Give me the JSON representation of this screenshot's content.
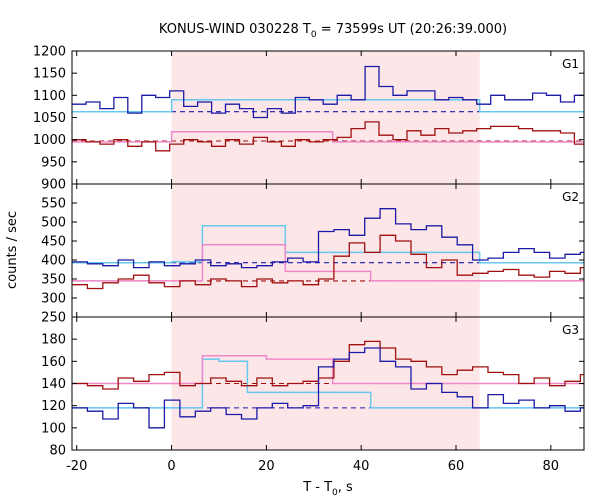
{
  "chart_data": {
    "type": "line",
    "title_main": "KONUS-WIND 030228 T",
    "title_sub": "0",
    "title_rest": " = 73599s UT (20:26:39.000)",
    "xlabel_main": "T - T",
    "xlabel_sub": "0",
    "xlabel_rest": ", s",
    "ylabel": "counts / sec",
    "xlim": [
      -21,
      87
    ],
    "x_ticks": [
      -20,
      0,
      20,
      40,
      60,
      80
    ],
    "highlight": [
      0,
      65
    ],
    "colors": {
      "blue": "#1a1aa6",
      "red": "#a01010",
      "lightblue": "#66c8ee",
      "pink": "#ee88c8",
      "shade": "#fde6e8"
    },
    "panels": [
      {
        "label": "G1",
        "ylim": [
          900,
          1200
        ],
        "y_ticks": [
          900,
          950,
          1000,
          1050,
          1100,
          1150,
          1200
        ],
        "step": 2.944,
        "start": -21,
        "blue_values": [
          1080,
          1085,
          1070,
          1095,
          1060,
          1100,
          1095,
          1110,
          1075,
          1085,
          1060,
          1080,
          1070,
          1050,
          1070,
          1060,
          1095,
          1090,
          1080,
          1100,
          1090,
          1165,
          1120,
          1100,
          1110,
          1110,
          1090,
          1095,
          1090,
          1080,
          1100,
          1090,
          1090,
          1105,
          1100,
          1085,
          1100,
          1070,
          1080,
          1090,
          1075,
          1100,
          1095,
          1090,
          1070,
          1075,
          1060,
          1080,
          1070,
          1060,
          1095,
          1080,
          1100,
          1070,
          1075,
          1060,
          1080,
          1080,
          1060,
          1100,
          1075,
          1060,
          1070,
          1080,
          1065,
          1070,
          1060,
          1055,
          1065,
          1060,
          1080,
          1060,
          1060,
          1055,
          1075,
          1060
        ],
        "red_values": [
          1000,
          995,
          990,
          1000,
          985,
          995,
          975,
          990,
          1000,
          995,
          985,
          1000,
          990,
          1005,
          995,
          985,
          1000,
          995,
          1000,
          1005,
          1025,
          1040,
          1010,
          1000,
          1020,
          1010,
          1025,
          1015,
          1020,
          1025,
          1030,
          1030,
          1025,
          1020,
          1020,
          1015,
          990,
          985,
          995,
          980,
          975,
          985,
          990,
          995,
          1000,
          990,
          995,
          985,
          1010,
          1000,
          1020,
          995,
          1005,
          1010,
          995,
          985,
          1000,
          1020,
          1000,
          1005,
          1000,
          990,
          1000,
          1010,
          1005,
          1020,
          1000,
          995,
          1000,
          1005,
          990,
          995,
          1010,
          1000,
          1010,
          1005
        ],
        "blue_model": [
          [
            -21,
            1063
          ],
          [
            0,
            1063
          ],
          [
            0,
            1090
          ],
          [
            65,
            1090
          ],
          [
            65,
            1063
          ],
          [
            87,
            1063
          ]
        ],
        "red_model": [
          [
            -21,
            995
          ],
          [
            0,
            995
          ],
          [
            0,
            1018
          ],
          [
            34,
            1018
          ],
          [
            34,
            995
          ],
          [
            87,
            995
          ]
        ],
        "blue_bg": 1063,
        "red_bg": 997
      },
      {
        "label": "G2",
        "ylim": [
          250,
          600
        ],
        "y_ticks": [
          250,
          300,
          350,
          400,
          450,
          500,
          550
        ],
        "step": 3.25,
        "start": -21,
        "blue_values": [
          395,
          390,
          385,
          400,
          380,
          395,
          385,
          390,
          400,
          385,
          390,
          380,
          385,
          395,
          405,
          395,
          475,
          480,
          465,
          510,
          535,
          495,
          480,
          490,
          460,
          440,
          400,
          405,
          420,
          430,
          420,
          405,
          415,
          420,
          410,
          410,
          405,
          395,
          400,
          410,
          405,
          395,
          400,
          390,
          395,
          415,
          385,
          390,
          400,
          395,
          385,
          380,
          385,
          390,
          385,
          380,
          385,
          395,
          385,
          380,
          390,
          395,
          385,
          390,
          380,
          395,
          385,
          380,
          390,
          395,
          385,
          380,
          395,
          390
        ],
        "red_values": [
          335,
          325,
          340,
          350,
          360,
          340,
          330,
          345,
          335,
          350,
          345,
          330,
          350,
          340,
          345,
          335,
          350,
          410,
          445,
          420,
          465,
          450,
          415,
          380,
          400,
          360,
          365,
          370,
          375,
          360,
          355,
          370,
          365,
          380,
          360,
          350,
          345,
          350,
          355,
          360,
          345,
          355,
          365,
          375,
          395,
          360,
          370,
          365,
          355,
          345,
          350,
          360,
          355,
          370,
          350,
          345,
          355,
          350,
          360,
          345,
          355,
          340,
          350,
          345,
          355,
          350,
          340,
          355,
          345,
          350,
          345,
          355,
          345,
          350
        ],
        "blue_model": [
          [
            -21,
            393
          ],
          [
            0,
            393
          ],
          [
            0,
            395
          ],
          [
            6.5,
            395
          ],
          [
            6.5,
            490
          ],
          [
            24,
            490
          ],
          [
            24,
            420
          ],
          [
            65,
            420
          ],
          [
            65,
            393
          ],
          [
            87,
            393
          ]
        ],
        "red_model": [
          [
            -21,
            345
          ],
          [
            0,
            345
          ],
          [
            0,
            345
          ],
          [
            6.5,
            345
          ],
          [
            6.5,
            440
          ],
          [
            24,
            440
          ],
          [
            24,
            370
          ],
          [
            42,
            370
          ],
          [
            42,
            345
          ],
          [
            87,
            345
          ]
        ],
        "blue_bg": 393,
        "red_bg": 345
      },
      {
        "label": "G3",
        "ylim": [
          80,
          200
        ],
        "y_ticks": [
          80,
          100,
          120,
          140,
          160,
          180
        ],
        "step": 3.25,
        "start": -21,
        "blue_values": [
          118,
          115,
          108,
          122,
          118,
          100,
          125,
          110,
          115,
          118,
          112,
          108,
          118,
          122,
          118,
          120,
          155,
          162,
          168,
          172,
          160,
          155,
          135,
          140,
          132,
          128,
          118,
          130,
          122,
          125,
          118,
          120,
          115,
          118,
          125,
          112,
          118,
          120,
          112,
          122,
          118,
          115,
          120,
          118,
          112,
          118,
          115,
          108,
          118,
          112,
          125,
          118,
          120,
          112,
          105,
          118,
          110,
          102,
          118,
          100,
          112,
          118,
          115,
          108
        ],
        "red_values": [
          140,
          138,
          135,
          145,
          142,
          148,
          150,
          138,
          140,
          145,
          142,
          138,
          145,
          138,
          140,
          142,
          145,
          160,
          175,
          178,
          172,
          162,
          160,
          155,
          148,
          152,
          155,
          150,
          148,
          140,
          145,
          138,
          142,
          148,
          140,
          135,
          138,
          140,
          145,
          142,
          138,
          140,
          145,
          142,
          138,
          140,
          143,
          145,
          140,
          138,
          142,
          146,
          140,
          138,
          142,
          140,
          145,
          138,
          142,
          140,
          143,
          138,
          140,
          142
        ],
        "blue_model": [
          [
            -21,
            118
          ],
          [
            0,
            118
          ],
          [
            0,
            118
          ],
          [
            6.5,
            118
          ],
          [
            6.5,
            162
          ],
          [
            10,
            162
          ],
          [
            10,
            160
          ],
          [
            16,
            160
          ],
          [
            16,
            132
          ],
          [
            42,
            132
          ],
          [
            42,
            118
          ],
          [
            87,
            118
          ]
        ],
        "red_model": [
          [
            -21,
            140
          ],
          [
            0,
            140
          ],
          [
            0,
            140
          ],
          [
            6.5,
            140
          ],
          [
            6.5,
            165
          ],
          [
            20,
            165
          ],
          [
            20,
            162
          ],
          [
            34,
            162
          ],
          [
            34,
            140
          ],
          [
            87,
            140
          ]
        ],
        "blue_bg": 118,
        "red_bg": 140
      }
    ]
  }
}
